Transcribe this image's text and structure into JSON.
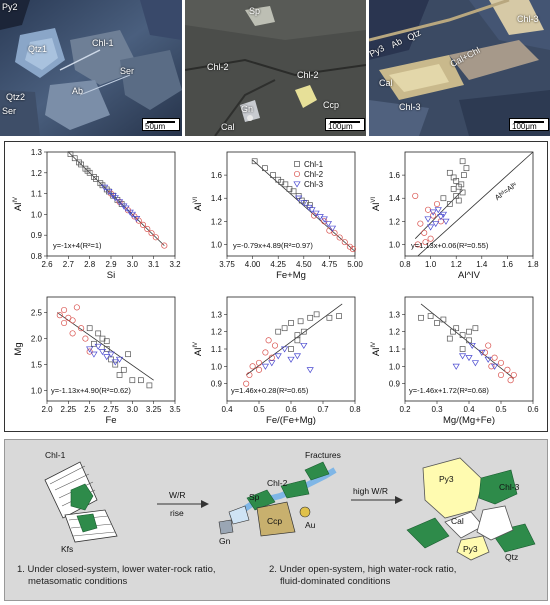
{
  "photos": [
    {
      "labels": {
        "py2": "Py2",
        "qtz1": "Qtz1",
        "chl1": "Chl-1",
        "ser1": "Ser",
        "qtz2": "Qtz2",
        "ab": "Ab",
        "ser2": "Ser"
      },
      "scale": "50μm"
    },
    {
      "labels": {
        "sp": "Sp",
        "chl2a": "Chl-2",
        "chl2b": "Chl-2",
        "gn": "Gn",
        "ccp": "Ccp",
        "cal": "Cal"
      },
      "scale": "100μm"
    },
    {
      "labels": {
        "py3": "Py3",
        "ab": "Ab",
        "qtz": "Qtz",
        "chl3a": "Chl-3",
        "cal": "Cal",
        "chl3b": "Chl-3",
        "calchl": "Cal+Chl"
      },
      "scale": "100μm"
    }
  ],
  "legend": [
    "Chl-1",
    "Chl-2",
    "Chl-3"
  ],
  "colors": {
    "chl1": "#555555",
    "chl2": "#d9534f",
    "chl3": "#4a4ad0"
  },
  "chart_data": [
    {
      "type": "scatter",
      "xlabel": "Si",
      "ylabel": "Al^IV",
      "xlim": [
        2.6,
        3.2
      ],
      "ylim": [
        0.8,
        1.3
      ],
      "xticks": [
        "2.6",
        "2.7",
        "2.8",
        "2.9",
        "3.0",
        "3.1",
        "3.2"
      ],
      "yticks": [
        "0.8",
        "0.9",
        "1.0",
        "1.1",
        "1.2",
        "1.3"
      ],
      "equation": "y=-1x+4(R²=1)",
      "fit": [
        [
          2.7,
          1.3
        ],
        [
          3.15,
          0.85
        ]
      ],
      "series": [
        {
          "name": "Chl-1",
          "points": [
            [
              2.71,
              1.29
            ],
            [
              2.73,
              1.27
            ],
            [
              2.75,
              1.25
            ],
            [
              2.76,
              1.24
            ],
            [
              2.78,
              1.22
            ],
            [
              2.79,
              1.21
            ],
            [
              2.8,
              1.2
            ],
            [
              2.82,
              1.18
            ],
            [
              2.83,
              1.17
            ],
            [
              2.85,
              1.15
            ],
            [
              2.86,
              1.14
            ],
            [
              2.88,
              1.12
            ],
            [
              2.89,
              1.11
            ],
            [
              2.91,
              1.09
            ],
            [
              2.93,
              1.07
            ],
            [
              2.95,
              1.05
            ]
          ]
        },
        {
          "name": "Chl-2",
          "points": [
            [
              2.9,
              1.1
            ],
            [
              2.94,
              1.06
            ],
            [
              2.98,
              1.02
            ],
            [
              3.01,
              0.99
            ],
            [
              3.03,
              0.97
            ],
            [
              3.05,
              0.95
            ],
            [
              3.07,
              0.93
            ],
            [
              3.09,
              0.91
            ],
            [
              3.11,
              0.89
            ],
            [
              3.15,
              0.85
            ]
          ]
        },
        {
          "name": "Chl-3",
          "points": [
            [
              2.87,
              1.13
            ],
            [
              2.89,
              1.11
            ],
            [
              2.91,
              1.09
            ],
            [
              2.92,
              1.08
            ],
            [
              2.94,
              1.06
            ],
            [
              2.96,
              1.04
            ],
            [
              2.97,
              1.03
            ],
            [
              2.99,
              1.01
            ],
            [
              3.0,
              1.0
            ],
            [
              3.02,
              0.98
            ]
          ]
        }
      ]
    },
    {
      "type": "scatter",
      "xlabel": "Fe+Mg",
      "ylabel": "Al^VI",
      "xlim": [
        3.75,
        5.0
      ],
      "ylim": [
        0.9,
        1.8
      ],
      "xticks": [
        "3.75",
        "4.00",
        "4.25",
        "4.50",
        "4.75",
        "5.00"
      ],
      "yticks": [
        "1.0",
        "1.2",
        "1.4",
        "1.6"
      ],
      "equation": "y=-0.79x+4.89(R²=0.97)",
      "fit": [
        [
          4.0,
          1.73
        ],
        [
          5.0,
          0.94
        ]
      ],
      "series": [
        {
          "name": "Chl-1",
          "points": [
            [
              4.02,
              1.72
            ],
            [
              4.12,
              1.66
            ],
            [
              4.2,
              1.6
            ],
            [
              4.25,
              1.56
            ],
            [
              4.28,
              1.54
            ],
            [
              4.32,
              1.52
            ],
            [
              4.36,
              1.48
            ],
            [
              4.4,
              1.46
            ],
            [
              4.45,
              1.42
            ],
            [
              4.48,
              1.38
            ],
            [
              4.52,
              1.36
            ],
            [
              4.56,
              1.34
            ]
          ]
        },
        {
          "name": "Chl-2",
          "points": [
            [
              4.6,
              1.25
            ],
            [
              4.7,
              1.2
            ],
            [
              4.75,
              1.12
            ],
            [
              4.8,
              1.1
            ],
            [
              4.85,
              1.06
            ],
            [
              4.9,
              1.02
            ],
            [
              4.95,
              0.98
            ],
            [
              4.98,
              0.96
            ]
          ]
        },
        {
          "name": "Chl-3",
          "points": [
            [
              4.45,
              1.4
            ],
            [
              4.5,
              1.36
            ],
            [
              4.55,
              1.32
            ],
            [
              4.58,
              1.3
            ],
            [
              4.62,
              1.27
            ],
            [
              4.66,
              1.24
            ],
            [
              4.7,
              1.22
            ],
            [
              4.74,
              1.18
            ],
            [
              4.78,
              1.14
            ]
          ]
        }
      ]
    },
    {
      "type": "scatter",
      "xlabel": "Al^IV",
      "ylabel": "Al^VI",
      "xlim": [
        0.8,
        1.8
      ],
      "ylim": [
        0.9,
        1.8
      ],
      "xticks": [
        "0.8",
        "1.0",
        "1.2",
        "1.4",
        "1.6",
        "1.8"
      ],
      "yticks": [
        "1.0",
        "1.2",
        "1.4",
        "1.6"
      ],
      "equation": "y=1.13x+0.06(R²=0.55)",
      "refline_label": "Alᵛᴵ=Alᴵᵛ",
      "fit": [
        [
          0.88,
          1.05
        ],
        [
          1.25,
          1.47
        ]
      ],
      "ref": [
        [
          0.9,
          0.9
        ],
        [
          1.8,
          1.8
        ]
      ],
      "series": [
        {
          "name": "Chl-1",
          "points": [
            [
              1.15,
              1.62
            ],
            [
              1.18,
              1.58
            ],
            [
              1.2,
              1.55
            ],
            [
              1.22,
              1.5
            ],
            [
              1.24,
              1.52
            ],
            [
              1.25,
              1.45
            ],
            [
              1.2,
              1.42
            ],
            [
              1.18,
              1.48
            ],
            [
              1.26,
              1.6
            ],
            [
              1.28,
              1.66
            ],
            [
              1.25,
              1.72
            ],
            [
              1.22,
              1.38
            ],
            [
              1.15,
              1.35
            ],
            [
              1.1,
              1.4
            ]
          ]
        },
        {
          "name": "Chl-2",
          "points": [
            [
              0.88,
              1.42
            ],
            [
              0.92,
              1.18
            ],
            [
              0.95,
              1.1
            ],
            [
              0.9,
              1.0
            ],
            [
              0.98,
              1.3
            ],
            [
              1.0,
              1.05
            ],
            [
              1.02,
              1.25
            ],
            [
              1.05,
              1.35
            ],
            [
              0.96,
              1.02
            ],
            [
              1.08,
              1.2
            ]
          ]
        },
        {
          "name": "Chl-3",
          "points": [
            [
              0.98,
              1.22
            ],
            [
              1.0,
              1.15
            ],
            [
              1.02,
              1.28
            ],
            [
              1.04,
              1.18
            ],
            [
              1.06,
              1.3
            ],
            [
              1.08,
              1.24
            ],
            [
              1.1,
              1.26
            ],
            [
              1.12,
              1.2
            ]
          ]
        }
      ]
    },
    {
      "type": "scatter",
      "xlabel": "Fe",
      "ylabel": "Mg",
      "xlim": [
        2.0,
        3.5
      ],
      "ylim": [
        0.8,
        2.8
      ],
      "xticks": [
        "2.0",
        "2.25",
        "2.5",
        "2.75",
        "3.0",
        "3.25",
        "3.5"
      ],
      "yticks": [
        "1.0",
        "1.5",
        "2.0",
        "2.5"
      ],
      "equation": "y=-1.13x+4.90(R²=0.62)",
      "fit": [
        [
          2.12,
          2.5
        ],
        [
          3.25,
          1.2
        ]
      ],
      "series": [
        {
          "name": "Chl-1",
          "points": [
            [
              2.5,
              2.2
            ],
            [
              2.6,
              2.1
            ],
            [
              2.65,
              2.0
            ],
            [
              2.7,
              1.8
            ],
            [
              2.75,
              1.6
            ],
            [
              2.8,
              1.5
            ],
            [
              2.85,
              1.3
            ],
            [
              2.9,
              1.4
            ],
            [
              2.95,
              1.7
            ],
            [
              3.0,
              1.2
            ],
            [
              3.1,
              1.2
            ],
            [
              3.2,
              1.1
            ],
            [
              2.55,
              1.9
            ],
            [
              2.7,
              1.95
            ]
          ]
        },
        {
          "name": "Chl-2",
          "points": [
            [
              2.15,
              2.45
            ],
            [
              2.2,
              2.55
            ],
            [
              2.25,
              2.4
            ],
            [
              2.3,
              2.35
            ],
            [
              2.35,
              2.6
            ],
            [
              2.4,
              2.2
            ],
            [
              2.45,
              2.0
            ],
            [
              2.3,
              2.1
            ],
            [
              2.5,
              1.75
            ],
            [
              2.2,
              2.3
            ]
          ]
        },
        {
          "name": "Chl-3",
          "points": [
            [
              2.5,
              1.8
            ],
            [
              2.55,
              1.7
            ],
            [
              2.6,
              1.85
            ],
            [
              2.65,
              1.75
            ],
            [
              2.7,
              1.65
            ],
            [
              2.75,
              1.7
            ],
            [
              2.8,
              1.55
            ],
            [
              2.85,
              1.6
            ]
          ]
        }
      ]
    },
    {
      "type": "scatter",
      "xlabel": "Fe/(Fe+Mg)",
      "ylabel": "Al^IV",
      "xlim": [
        0.4,
        0.8
      ],
      "ylim": [
        0.8,
        1.4
      ],
      "xticks": [
        "0.4",
        "0.5",
        "0.6",
        "0.7",
        "0.8"
      ],
      "yticks": [
        "0.9",
        "1.0",
        "1.1",
        "1.2",
        "1.3"
      ],
      "equation": "y=1.46x+0.28(R²=0.65)",
      "fit": [
        [
          0.46,
          0.95
        ],
        [
          0.76,
          1.36
        ]
      ],
      "series": [
        {
          "name": "Chl-1",
          "points": [
            [
              0.56,
              1.2
            ],
            [
              0.58,
              1.22
            ],
            [
              0.6,
              1.25
            ],
            [
              0.62,
              1.18
            ],
            [
              0.63,
              1.26
            ],
            [
              0.64,
              1.2
            ],
            [
              0.66,
              1.28
            ],
            [
              0.68,
              1.3
            ],
            [
              0.72,
              1.28
            ],
            [
              0.75,
              1.29
            ],
            [
              0.6,
              1.1
            ],
            [
              0.62,
              1.15
            ]
          ]
        },
        {
          "name": "Chl-2",
          "points": [
            [
              0.46,
              0.9
            ],
            [
              0.47,
              0.95
            ],
            [
              0.48,
              1.0
            ],
            [
              0.5,
              1.02
            ],
            [
              0.52,
              1.08
            ],
            [
              0.54,
              1.05
            ],
            [
              0.55,
              1.12
            ],
            [
              0.5,
              0.98
            ],
            [
              0.53,
              1.15
            ]
          ]
        },
        {
          "name": "Chl-3",
          "points": [
            [
              0.52,
              1.0
            ],
            [
              0.54,
              1.02
            ],
            [
              0.56,
              1.06
            ],
            [
              0.58,
              1.1
            ],
            [
              0.6,
              1.04
            ],
            [
              0.62,
              1.06
            ],
            [
              0.66,
              0.98
            ],
            [
              0.64,
              1.12
            ]
          ]
        }
      ]
    },
    {
      "type": "scatter",
      "xlabel": "Mg/(Mg+Fe)",
      "ylabel": "Al^IV",
      "xlim": [
        0.2,
        0.6
      ],
      "ylim": [
        0.8,
        1.4
      ],
      "xticks": [
        "0.2",
        "0.3",
        "0.4",
        "0.5",
        "0.6"
      ],
      "yticks": [
        "0.9",
        "1.0",
        "1.1",
        "1.2",
        "1.3"
      ],
      "equation": "y=-1.46x+1.72(R²=0.68)",
      "fit": [
        [
          0.25,
          1.36
        ],
        [
          0.54,
          0.93
        ]
      ],
      "series": [
        {
          "name": "Chl-1",
          "points": [
            [
              0.25,
              1.28
            ],
            [
              0.28,
              1.29
            ],
            [
              0.3,
              1.25
            ],
            [
              0.32,
              1.27
            ],
            [
              0.35,
              1.2
            ],
            [
              0.36,
              1.22
            ],
            [
              0.38,
              1.18
            ],
            [
              0.4,
              1.2
            ],
            [
              0.42,
              1.22
            ],
            [
              0.38,
              1.1
            ],
            [
              0.4,
              1.15
            ],
            [
              0.34,
              1.16
            ]
          ]
        },
        {
          "name": "Chl-2",
          "points": [
            [
              0.46,
              1.12
            ],
            [
              0.48,
              1.05
            ],
            [
              0.5,
              1.02
            ],
            [
              0.52,
              0.98
            ],
            [
              0.53,
              0.92
            ],
            [
              0.54,
              0.95
            ],
            [
              0.45,
              1.08
            ],
            [
              0.5,
              0.95
            ],
            [
              0.47,
              1.0
            ]
          ]
        },
        {
          "name": "Chl-3",
          "points": [
            [
              0.36,
              1.0
            ],
            [
              0.38,
              1.06
            ],
            [
              0.4,
              1.05
            ],
            [
              0.42,
              1.02
            ],
            [
              0.44,
              1.08
            ],
            [
              0.46,
              1.04
            ],
            [
              0.48,
              1.0
            ],
            [
              0.41,
              1.12
            ]
          ]
        }
      ]
    }
  ],
  "schematic": {
    "left": {
      "chl1": "Chl-1",
      "kfs": "Kfs"
    },
    "arrow1": {
      "line1": "W/R",
      "line2": "rise"
    },
    "middle": {
      "fractures": "Fractures",
      "chl2": "Chl-2",
      "sp": "Sp",
      "ccp": "Ccp",
      "au": "Au",
      "gn": "Gn"
    },
    "arrow2": "high W/R",
    "right": {
      "py3a": "Py3",
      "cal": "Cal",
      "chl3": "Chl-3",
      "qtz": "Qtz",
      "py3b": "Py3"
    },
    "caption1": [
      "1. Under closed-system, lower water-rock ratio,",
      "metasomatic conditions"
    ],
    "caption2": [
      "2. Under open-system, high water-rock ratio,",
      "fluid-dominated conditions"
    ]
  }
}
